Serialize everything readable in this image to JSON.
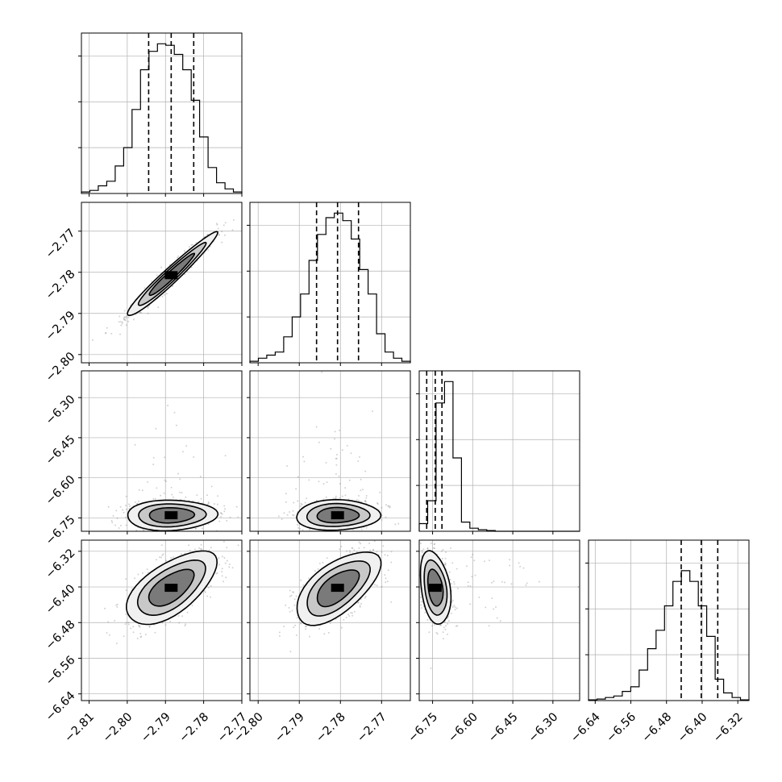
{
  "chart_data": {
    "type": "corner",
    "grid": true,
    "colors": {
      "line": "#000000",
      "points": "#7f7f7f",
      "grid": "#b0b0b0",
      "fill_dark": "#000000",
      "fill_light": "#f2f2f2"
    },
    "parameters": [
      {
        "index": 0,
        "range": [
          -2.812,
          -2.77
        ],
        "ticks": [
          "-2.81",
          "-2.80",
          "-2.79",
          "-2.78",
          "-2.77"
        ],
        "tick_values": [
          -2.81,
          -2.8,
          -2.79,
          -2.78,
          -2.77
        ]
      },
      {
        "index": 1,
        "range": [
          -2.802,
          -2.763
        ],
        "ticks": [
          "-2.80",
          "-2.79",
          "-2.78",
          "-2.77"
        ],
        "tick_values": [
          -2.8,
          -2.79,
          -2.78,
          -2.77
        ]
      },
      {
        "index": 2,
        "range": [
          -6.8,
          -6.2
        ],
        "ticks": [
          "-6.30",
          "-6.45",
          "-6.60",
          "-6.75"
        ],
        "tick_values": [
          -6.3,
          -6.45,
          -6.6,
          -6.75
        ]
      },
      {
        "index": 3,
        "range": [
          -6.655,
          -6.295
        ],
        "ticks": [
          "-6.64",
          "-6.56",
          "-6.48",
          "-6.40",
          "-6.32"
        ],
        "tick_values": [
          -6.64,
          -6.56,
          -6.48,
          -6.4,
          -6.32
        ]
      }
    ],
    "quantiles": [
      [
        -2.7944,
        -2.7885,
        -2.7826
      ],
      [
        -2.7858,
        -2.7807,
        -2.7756
      ],
      [
        -6.772,
        -6.74,
        -6.715
      ],
      [
        -6.447,
        -6.402,
        -6.365
      ]
    ],
    "histograms": [
      [
        0.01,
        0.02,
        0.05,
        0.08,
        0.18,
        0.3,
        0.55,
        0.81,
        0.93,
        0.98,
        0.97,
        0.91,
        0.81,
        0.61,
        0.37,
        0.17,
        0.07,
        0.03,
        0.01
      ],
      [
        0.01,
        0.03,
        0.05,
        0.07,
        0.17,
        0.3,
        0.45,
        0.67,
        0.84,
        0.95,
        0.98,
        0.93,
        0.81,
        0.61,
        0.45,
        0.19,
        0.07,
        0.03,
        0.01
      ],
      [
        0.05,
        0.2,
        0.84,
        0.98,
        0.48,
        0.06,
        0.02,
        0.01,
        0.005,
        0,
        0,
        0,
        0,
        0,
        0,
        0,
        0,
        0,
        0
      ],
      [
        0.005,
        0.01,
        0.02,
        0.03,
        0.06,
        0.09,
        0.2,
        0.34,
        0.46,
        0.62,
        0.78,
        0.85,
        0.78,
        0.62,
        0.42,
        0.14,
        0.05,
        0.02,
        0.005
      ]
    ],
    "histogram_ylim": [
      0,
      1.05
    ]
  }
}
